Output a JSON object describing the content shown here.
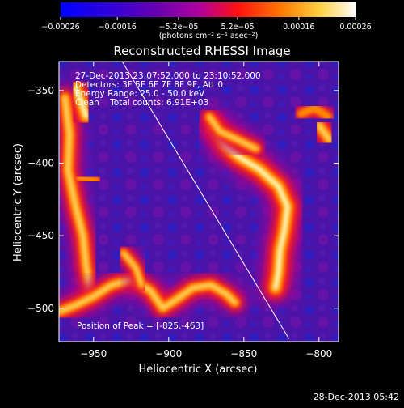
{
  "chart_data": {
    "type": "heatmap",
    "title": "Reconstructed RHESSI Image",
    "xlabel": "Heliocentric X (arcsec)",
    "ylabel": "Heliocentric Y (arcsec)",
    "xlim": [
      -973,
      -787
    ],
    "ylim": [
      -523,
      -330
    ],
    "x_ticks": [
      -950,
      -900,
      -850,
      -800
    ],
    "x_tick_labels": [
      "−950",
      "−900",
      "−850",
      "−800"
    ],
    "y_ticks": [
      -350,
      -400,
      -450,
      -500
    ],
    "y_tick_labels": [
      "−350",
      "−400",
      "−450",
      "−500"
    ],
    "colorbar": {
      "range": [
        -0.00026,
        0.00026
      ],
      "ticks": [
        -0.00026,
        -0.00016,
        -5.2e-05,
        5.2e-05,
        0.00016,
        0.00026
      ],
      "tick_labels": [
        "−0.00026",
        "−0.00016",
        "−5.2e−05",
        "5.2e−05",
        "0.00016",
        "0.00026"
      ],
      "units_label": "(photons cm⁻² s⁻¹ asec⁻²)",
      "colors": [
        "#0000ff",
        "#4a00b0",
        "#a000a0",
        "#ff1000",
        "#ff8000",
        "#ffff80",
        "#ffffff"
      ]
    },
    "annotations": {
      "time_range": "27-Dec-2013 23:07:52.000 to 23:10:52.000",
      "detectors": "Detectors: 3F 5F 6F 7F 8F 9F, Att 0",
      "energy": "Energy Range: 25.0 - 50.0 keV",
      "method": "Clean    Total counts: 6.91E+03",
      "peak": "Position of Peak = [-825,-463]"
    },
    "limb_line": [
      [
        -935,
        -323
      ],
      [
        -820,
        -521
      ]
    ],
    "bright_regions": [
      {
        "name": "left-arc",
        "path": [
          [
            -969,
            -355
          ],
          [
            -966,
            -380
          ],
          [
            -967,
            -405
          ],
          [
            -962,
            -430
          ],
          [
            -957,
            -450
          ],
          [
            -955,
            -470
          ],
          [
            -952,
            -490
          ]
        ],
        "level": 0.75
      },
      {
        "name": "top-left-blob",
        "path": [
          [
            -962,
            -348
          ],
          [
            -958,
            -358
          ],
          [
            -955,
            -368
          ]
        ],
        "level": 0.95
      },
      {
        "name": "bottom-row",
        "path": [
          [
            -972,
            -502
          ],
          [
            -962,
            -498
          ],
          [
            -950,
            -492
          ],
          [
            -938,
            -484
          ],
          [
            -924,
            -480
          ],
          [
            -912,
            -488
          ],
          [
            -904,
            -500
          ],
          [
            -895,
            -494
          ],
          [
            -884,
            -486
          ],
          [
            -872,
            -484
          ],
          [
            -862,
            -490
          ],
          [
            -856,
            -496
          ]
        ],
        "level": 0.7
      },
      {
        "name": "mid-lower-patch",
        "path": [
          [
            -930,
            -462
          ],
          [
            -922,
            -472
          ],
          [
            -918,
            -484
          ]
        ],
        "level": 0.55
      },
      {
        "name": "right-arc",
        "path": [
          [
            -870,
            -375
          ],
          [
            -862,
            -388
          ],
          [
            -853,
            -396
          ],
          [
            -840,
            -404
          ],
          [
            -827,
            -416
          ],
          [
            -821,
            -430
          ],
          [
            -823,
            -446
          ],
          [
            -826,
            -460
          ],
          [
            -827,
            -475
          ],
          [
            -829,
            -486
          ]
        ],
        "level": 1.0
      },
      {
        "name": "right-arc-top",
        "path": [
          [
            -873,
            -368
          ],
          [
            -866,
            -378
          ],
          [
            -854,
            -384
          ],
          [
            -842,
            -390
          ]
        ],
        "level": 0.6
      },
      {
        "name": "top-right-spot",
        "path": [
          [
            -800,
            -374
          ],
          [
            -793,
            -384
          ]
        ],
        "level": 0.8
      },
      {
        "name": "top-right-ring",
        "path": [
          [
            -812,
            -366
          ],
          [
            -803,
            -362
          ],
          [
            -794,
            -368
          ]
        ],
        "level": 0.5
      },
      {
        "name": "mid-left-blob",
        "path": [
          [
            -960,
            -410
          ],
          [
            -948,
            -412
          ]
        ],
        "level": 0.45
      }
    ]
  },
  "footer": {
    "timestamp": "28-Dec-2013 05:42"
  }
}
